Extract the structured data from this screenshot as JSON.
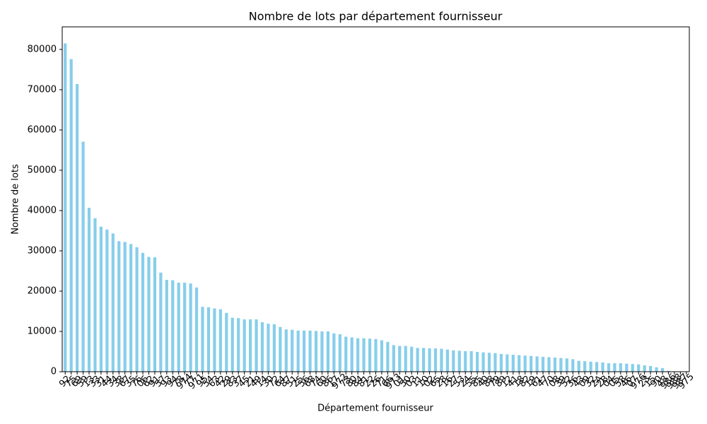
{
  "chart_data": {
    "type": "bar",
    "title": "Nombre de lots par département fournisseur",
    "x_label": "Département fournisseur",
    "y_label": "Nombre de lots",
    "categories": [
      "92",
      "75",
      "69",
      "59",
      "13",
      "33",
      "31",
      "44",
      "34",
      "38",
      "67",
      "35",
      "76",
      "06",
      "62",
      "91",
      "57",
      "93",
      "94",
      "78",
      "974",
      "77",
      "971",
      "95",
      "54",
      "63",
      "42",
      "29",
      "83",
      "37",
      "45",
      "21",
      "49",
      "14",
      "30",
      "72",
      "64",
      "87",
      "51",
      "25",
      "56",
      "68",
      "74",
      "60",
      "86",
      "17",
      "972",
      "73",
      "80",
      "84",
      "81",
      "22",
      "26",
      "71",
      "66",
      "973",
      "01",
      "50",
      "03",
      "11",
      "10",
      "02",
      "65",
      "28",
      "16",
      "27",
      "53",
      "24",
      "55",
      "85",
      "40",
      "88",
      "79",
      "89",
      "12",
      "41",
      "18",
      "82",
      "19",
      "61",
      "47",
      "70",
      "08",
      "39",
      "52",
      "36",
      "43",
      "09",
      "32",
      "2A",
      "2B",
      "04",
      "05",
      "58",
      "46",
      "07",
      "976",
      "23",
      "15",
      "90",
      "48",
      "986",
      "988",
      "987",
      "975"
    ],
    "values": [
      81500,
      77600,
      71400,
      57100,
      40700,
      38100,
      36000,
      35300,
      34300,
      32400,
      32200,
      31700,
      30900,
      29500,
      28500,
      28400,
      24600,
      22800,
      22700,
      22100,
      22100,
      21900,
      20900,
      16100,
      16000,
      15700,
      15500,
      14600,
      13400,
      13300,
      13000,
      13000,
      13000,
      12300,
      11900,
      11800,
      11100,
      10500,
      10400,
      10200,
      10200,
      10200,
      10100,
      10000,
      10000,
      9500,
      9300,
      8700,
      8500,
      8300,
      8300,
      8200,
      8100,
      7800,
      7400,
      6600,
      6400,
      6400,
      6200,
      5900,
      5900,
      5800,
      5800,
      5700,
      5500,
      5300,
      5200,
      5100,
      5100,
      4900,
      4800,
      4700,
      4600,
      4400,
      4300,
      4200,
      4100,
      4000,
      3900,
      3800,
      3700,
      3600,
      3500,
      3400,
      3300,
      3100,
      2700,
      2600,
      2500,
      2400,
      2300,
      2100,
      2100,
      2100,
      2000,
      1900,
      1800,
      1600,
      1400,
      1100,
      900,
      200,
      100,
      50,
      20
    ],
    "color": "#87ceeb",
    "ylim": [
      0,
      85600
    ],
    "yticks": [
      0,
      10000,
      20000,
      30000,
      40000,
      50000,
      60000,
      70000,
      80000
    ],
    "grid": false
  }
}
